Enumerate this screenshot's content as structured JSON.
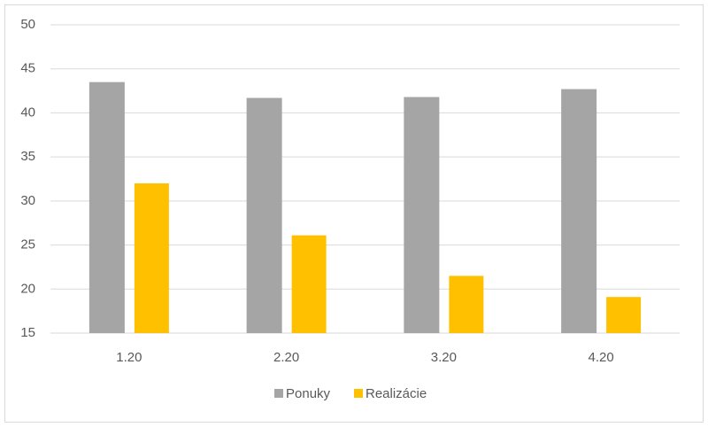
{
  "chart_data": {
    "type": "bar",
    "categories": [
      "1.20",
      "2.20",
      "3.20",
      "4.20"
    ],
    "series": [
      {
        "name": "Ponuky",
        "color": "#a5a5a5",
        "values": [
          43.5,
          41.7,
          41.8,
          42.7
        ]
      },
      {
        "name": "Realizácie",
        "color": "#ffc000",
        "values": [
          32.0,
          26.1,
          21.5,
          19.1
        ]
      }
    ],
    "ylim": [
      15,
      50
    ],
    "yticks": [
      15,
      20,
      25,
      30,
      35,
      40,
      45,
      50
    ],
    "grid": true,
    "legend": "bottom"
  }
}
